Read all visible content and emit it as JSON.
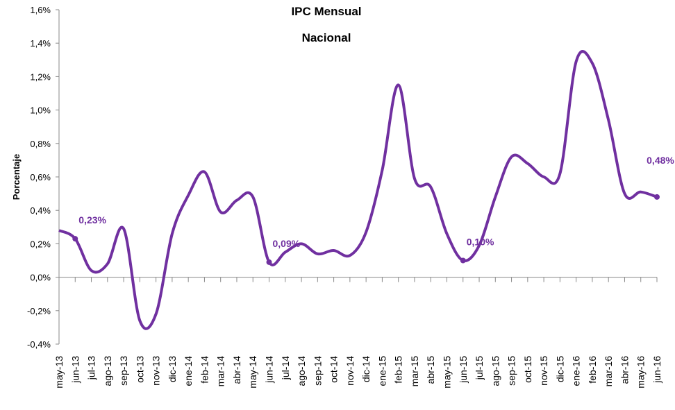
{
  "chart_data": {
    "type": "line",
    "title": "IPC Mensual",
    "subtitle": "Nacional",
    "y_label": "Porcentaje",
    "categories": [
      "may-13",
      "jun-13",
      "jul-13",
      "ago-13",
      "sep-13",
      "oct-13",
      "nov-13",
      "dic-13",
      "ene-14",
      "feb-14",
      "mar-14",
      "abr-14",
      "may-14",
      "jun-14",
      "jul-14",
      "ago-14",
      "sep-14",
      "oct-14",
      "nov-14",
      "dic-14",
      "ene-15",
      "feb-15",
      "mar-15",
      "abr-15",
      "may-15",
      "jun-15",
      "jul-15",
      "ago-15",
      "sep-15",
      "oct-15",
      "nov-15",
      "dic-15",
      "ene-16",
      "feb-16",
      "mar-16",
      "abr-16",
      "may-16",
      "jun-16"
    ],
    "series": [
      {
        "name": "IPC Mensual",
        "color": "#7030a0",
        "values": [
          0.28,
          0.23,
          0.04,
          0.08,
          0.29,
          -0.26,
          -0.22,
          0.26,
          0.49,
          0.63,
          0.39,
          0.46,
          0.48,
          0.09,
          0.15,
          0.2,
          0.14,
          0.16,
          0.13,
          0.27,
          0.64,
          1.15,
          0.59,
          0.54,
          0.26,
          0.1,
          0.19,
          0.48,
          0.72,
          0.68,
          0.6,
          0.62,
          1.29,
          1.28,
          0.94,
          0.5,
          0.51,
          0.48
        ],
        "value_labels": [
          null,
          "0,23%",
          null,
          null,
          null,
          null,
          null,
          null,
          null,
          null,
          null,
          null,
          null,
          "0,09%",
          null,
          null,
          null,
          null,
          null,
          null,
          null,
          null,
          null,
          null,
          null,
          "0,10%",
          null,
          null,
          null,
          null,
          null,
          null,
          null,
          null,
          null,
          null,
          null,
          "0,48%"
        ]
      }
    ],
    "ylim": [
      -0.4,
      1.6
    ],
    "yticks": [
      {
        "value": -0.4,
        "label": "-0,4%"
      },
      {
        "value": -0.2,
        "label": "-0,2%"
      },
      {
        "value": 0,
        "label": "0,0%"
      },
      {
        "value": 0.2,
        "label": "0,2%"
      },
      {
        "value": 0.4,
        "label": "0,4%"
      },
      {
        "value": 0.6,
        "label": "0,6%"
      },
      {
        "value": 0.8,
        "label": "0,8%"
      },
      {
        "value": 1.0,
        "label": "1,0%"
      },
      {
        "value": 1.2,
        "label": "1,2%"
      },
      {
        "value": 1.4,
        "label": "1,4%"
      },
      {
        "value": 1.6,
        "label": "1,6%"
      }
    ],
    "grid": false
  }
}
